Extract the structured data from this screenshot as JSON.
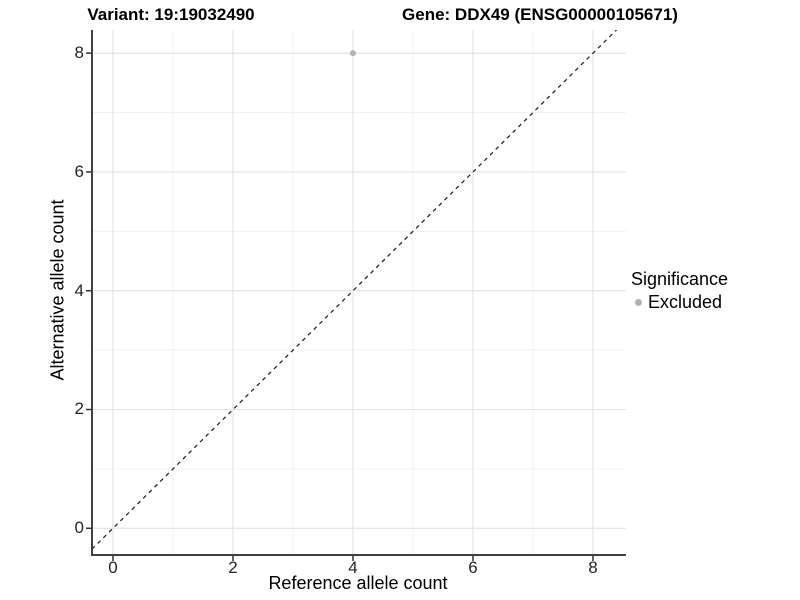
{
  "chart_data": {
    "type": "scatter",
    "titles": {
      "left": "Variant: 19:19032490",
      "right": "Gene: DDX49 (ENSG00000105671)"
    },
    "xlabel": "Reference allele count",
    "ylabel": "Alternative allele count",
    "xlim": [
      -0.35,
      8.55
    ],
    "ylim": [
      -0.45,
      8.39
    ],
    "xticks": [
      0,
      2,
      4,
      6,
      8
    ],
    "yticks": [
      0,
      2,
      4,
      6,
      8
    ],
    "grid": {
      "major": true,
      "minor": true,
      "major_color": "#e2e2e2",
      "minor_color": "#efefef",
      "background": "#ffffff"
    },
    "axis_color": "#404040",
    "tick_color": "#333333",
    "reference_line": {
      "slope": 1,
      "intercept": 0,
      "style": "dashed",
      "color": "#1a1a1a"
    },
    "series": [
      {
        "name": "Excluded",
        "color": "#b3b3b3",
        "points": [
          {
            "x": 4,
            "y": 8
          }
        ]
      }
    ],
    "legend": {
      "title": "Significance",
      "position": "right",
      "entries": [
        {
          "label": "Excluded",
          "color": "#b3b3b3"
        }
      ]
    }
  }
}
